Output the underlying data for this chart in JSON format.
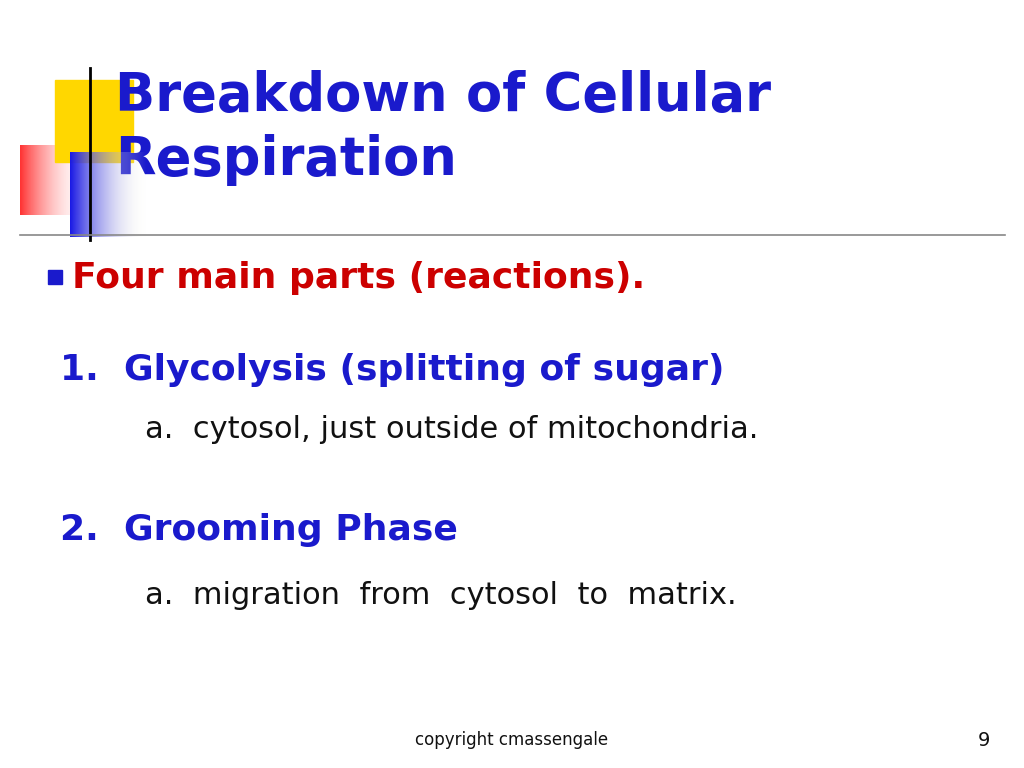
{
  "title_line1": "Breakdown of Cellular",
  "title_line2": "Respiration",
  "title_color": "#1a1acc",
  "title_fontsize": 38,
  "bullet_text": "Four main parts (reactions).",
  "bullet_color": "#cc0000",
  "bullet_fontsize": 26,
  "item1_label": "1.  Glycolysis (splitting of sugar)",
  "item1_color": "#1a1acc",
  "item1_fontsize": 26,
  "item1a_text": "a.  cytosol, just outside of mitochondria.",
  "item1a_color": "#111111",
  "item1a_fontsize": 22,
  "item2_label": "2.  Grooming Phase",
  "item2_color": "#1a1acc",
  "item2_fontsize": 26,
  "item2a_text": "a.  migration  from  cytosol  to  matrix.",
  "item2a_color": "#111111",
  "item2a_fontsize": 22,
  "copyright_text": "copyright cmassengale",
  "page_number": "9",
  "footer_fontsize": 12,
  "footer_color": "#111111",
  "bg_color": "#ffffff",
  "line_color": "#888888"
}
